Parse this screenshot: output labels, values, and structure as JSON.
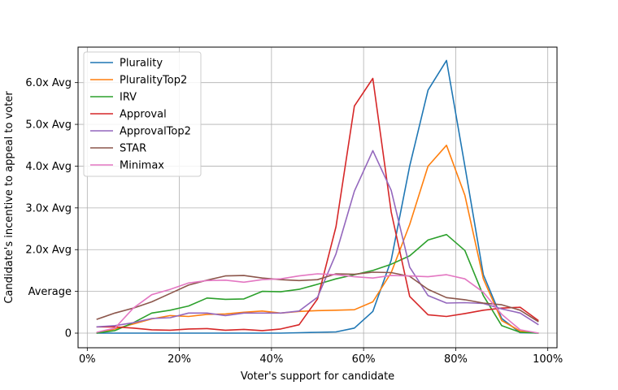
{
  "chart_data": {
    "type": "line",
    "title": "",
    "xlabel": "Voter's support for candidate",
    "ylabel": "Candidate's incentive to appeal to voter",
    "xlim": [
      -2,
      102
    ],
    "ylim": [
      -0.35,
      6.85
    ],
    "x_ticks": [
      {
        "value": 0,
        "label": "0%"
      },
      {
        "value": 20,
        "label": "20%"
      },
      {
        "value": 40,
        "label": "40%"
      },
      {
        "value": 60,
        "label": "60%"
      },
      {
        "value": 80,
        "label": "80%"
      },
      {
        "value": 100,
        "label": "100%"
      }
    ],
    "y_ticks": [
      {
        "value": 0,
        "label": "0"
      },
      {
        "value": 1,
        "label": "Average"
      },
      {
        "value": 2,
        "label": "2.0x Avg"
      },
      {
        "value": 3,
        "label": "3.0x Avg"
      },
      {
        "value": 4,
        "label": "4.0x Avg"
      },
      {
        "value": 5,
        "label": "5.0x Avg"
      },
      {
        "value": 6,
        "label": "6.0x Avg"
      }
    ],
    "grid": true,
    "legend_position": "top-left",
    "x": [
      2,
      6,
      10,
      14,
      18,
      22,
      26,
      30,
      34,
      38,
      42,
      46,
      50,
      54,
      58,
      62,
      66,
      70,
      74,
      78,
      82,
      86,
      90,
      94,
      98
    ],
    "series": [
      {
        "name": "Plurality",
        "color": "#1f77b4",
        "values": [
          0,
          0,
          0,
          0,
          0,
          0,
          0,
          0,
          0,
          0,
          0,
          0.01,
          0.02,
          0.03,
          0.12,
          0.52,
          1.75,
          4.0,
          5.82,
          6.53,
          4.0,
          1.4,
          0.35,
          0.01,
          0
        ]
      },
      {
        "name": "PluralityTop2",
        "color": "#ff7f0e",
        "values": [
          0,
          0.1,
          0.22,
          0.34,
          0.42,
          0.4,
          0.45,
          0.46,
          0.5,
          0.53,
          0.48,
          0.52,
          0.54,
          0.55,
          0.56,
          0.75,
          1.45,
          2.6,
          4.0,
          4.5,
          3.3,
          1.3,
          0.3,
          0.05,
          0
        ]
      },
      {
        "name": "IRV",
        "color": "#2ca02c",
        "values": [
          0,
          0.06,
          0.25,
          0.48,
          0.55,
          0.65,
          0.84,
          0.81,
          0.82,
          1.0,
          0.99,
          1.05,
          1.17,
          1.3,
          1.4,
          1.5,
          1.65,
          1.85,
          2.23,
          2.36,
          1.98,
          0.9,
          0.18,
          0.02,
          0
        ]
      },
      {
        "name": "Approval",
        "color": "#d62728",
        "values": [
          0.15,
          0.15,
          0.12,
          0.08,
          0.07,
          0.1,
          0.11,
          0.07,
          0.09,
          0.06,
          0.1,
          0.2,
          0.82,
          2.55,
          5.44,
          6.1,
          2.9,
          0.88,
          0.44,
          0.4,
          0.47,
          0.55,
          0.6,
          0.62,
          0.3
        ]
      },
      {
        "name": "ApprovalTop2",
        "color": "#9467bd",
        "values": [
          0.15,
          0.18,
          0.25,
          0.35,
          0.37,
          0.48,
          0.48,
          0.42,
          0.48,
          0.48,
          0.48,
          0.53,
          0.86,
          1.9,
          3.4,
          4.37,
          3.42,
          1.58,
          0.9,
          0.72,
          0.73,
          0.71,
          0.58,
          0.48,
          0.2
        ]
      },
      {
        "name": "STAR",
        "color": "#8c564b",
        "values": [
          0.33,
          0.48,
          0.6,
          0.75,
          0.95,
          1.15,
          1.27,
          1.37,
          1.38,
          1.32,
          1.28,
          1.26,
          1.28,
          1.42,
          1.41,
          1.46,
          1.45,
          1.36,
          1.05,
          0.85,
          0.8,
          0.72,
          0.68,
          0.55,
          0.27
        ]
      },
      {
        "name": "Minimax",
        "color": "#e377c2",
        "values": [
          0.02,
          0.12,
          0.6,
          0.92,
          1.05,
          1.2,
          1.26,
          1.27,
          1.22,
          1.28,
          1.3,
          1.37,
          1.42,
          1.4,
          1.35,
          1.32,
          1.38,
          1.37,
          1.35,
          1.4,
          1.3,
          0.98,
          0.45,
          0.08,
          0.0
        ]
      }
    ]
  }
}
